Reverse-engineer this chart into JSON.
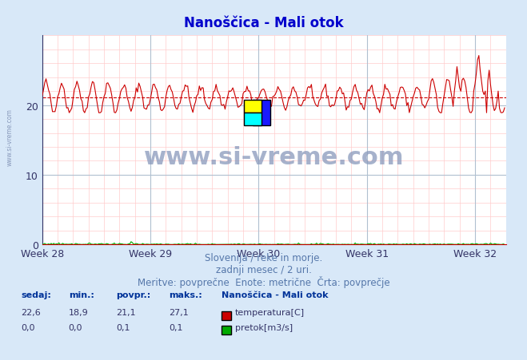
{
  "title": "Nanoščica - Mali otok",
  "title_color": "#0000cc",
  "bg_color": "#d8e8f8",
  "plot_bg_color": "#ffffff",
  "grid_color_major": "#b0c0d0",
  "xlim": [
    0,
    360
  ],
  "ylim": [
    0,
    30
  ],
  "yticks": [
    0,
    10,
    20
  ],
  "week_ticks": [
    0,
    84,
    168,
    252,
    336
  ],
  "week_labels": [
    "Week 28",
    "Week 29",
    "Week 30",
    "Week 31",
    "Week 32"
  ],
  "temp_min": 18.9,
  "temp_max": 27.1,
  "temp_avg": 21.1,
  "temp_color": "#cc0000",
  "flow_color": "#00aa00",
  "watermark_color": "#8899bb",
  "footer_line1": "Slovenija / reke in morje.",
  "footer_line2": "zadnji mesec / 2 uri.",
  "footer_line3": "Meritve: povprečne  Enote: metrične  Črta: povprečje",
  "footer_color": "#5577aa",
  "legend_title": "Nanoščica - Mali otok",
  "legend_items": [
    "temperatura[C]",
    "pretok[m3/s]"
  ],
  "legend_colors": [
    "#cc0000",
    "#00aa00"
  ],
  "table_headers": [
    "sedaj:",
    "min.:",
    "povpr.:",
    "maks.:"
  ],
  "table_temp_values": [
    "22,6",
    "18,9",
    "21,1",
    "27,1"
  ],
  "table_flow_values": [
    "0,0",
    "0,0",
    "0,1",
    "0,1"
  ]
}
